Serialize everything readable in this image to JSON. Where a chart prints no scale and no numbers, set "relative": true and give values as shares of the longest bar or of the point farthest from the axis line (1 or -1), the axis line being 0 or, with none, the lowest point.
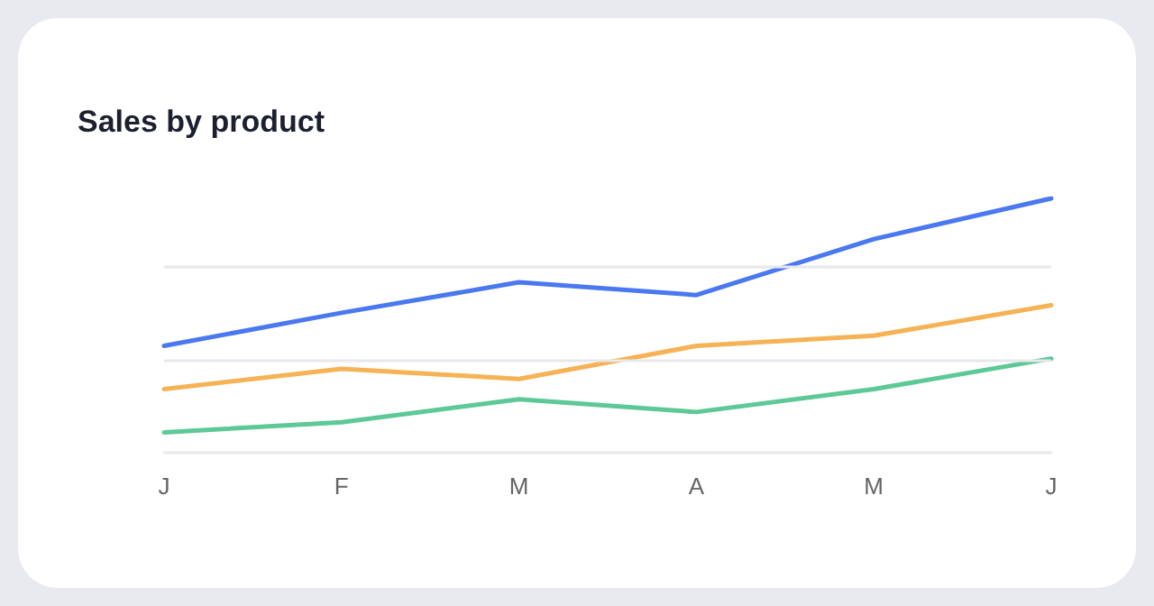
{
  "chart_data": {
    "type": "line",
    "title": "Sales by product",
    "categories": [
      "J",
      "F",
      "M",
      "A",
      "M",
      "J"
    ],
    "relative": true,
    "marker": "none",
    "ref_lines": [
      {
        "axis": "y",
        "value": 0.36,
        "color": "#e8e8ec"
      },
      {
        "axis": "y",
        "value": 0.73,
        "color": "#e8e8ec"
      }
    ],
    "series": [
      {
        "color": "#4a78f0",
        "values": [
          0.42,
          0.55,
          0.67,
          0.62,
          0.84,
          1
        ]
      },
      {
        "color": "#f5b355",
        "values": [
          0.25,
          0.33,
          0.29,
          0.42,
          0.46,
          0.58
        ]
      },
      {
        "color": "#5cc997",
        "values": [
          0.08,
          0.12,
          0.21,
          0.16,
          0.25,
          0.37
        ]
      }
    ]
  }
}
